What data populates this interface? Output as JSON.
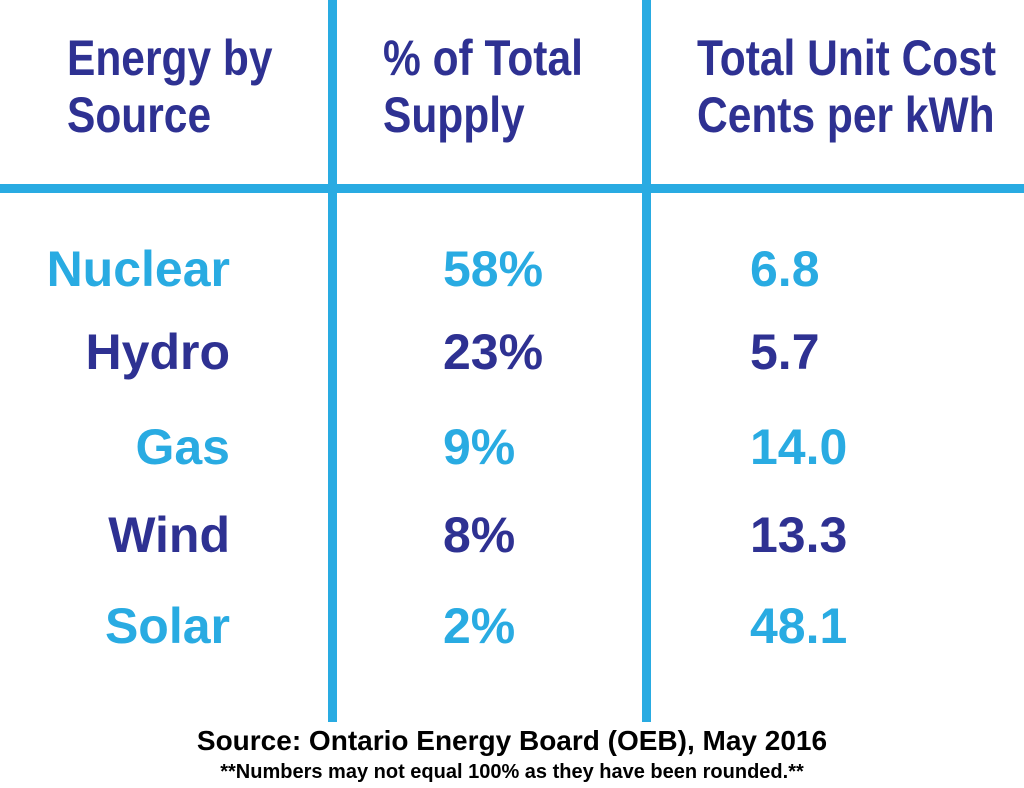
{
  "table": {
    "columns": [
      {
        "title_line1": "Energy by",
        "title_line2": "Source"
      },
      {
        "title_line1": "% of Total",
        "title_line2": "Supply"
      },
      {
        "title_line1": "Total Unit Cost",
        "title_line2": "Cents per kWh"
      }
    ],
    "rows": [
      {
        "source": "Nuclear",
        "supply_pct": "58%",
        "cost": "6.8"
      },
      {
        "source": "Hydro",
        "supply_pct": "23%",
        "cost": "5.7"
      },
      {
        "source": "Gas",
        "supply_pct": "9%",
        "cost": "14.0"
      },
      {
        "source": "Wind",
        "supply_pct": "8%",
        "cost": "13.3"
      },
      {
        "source": "Solar",
        "supply_pct": "2%",
        "cost": "48.1"
      }
    ]
  },
  "footer": {
    "source_text": "Source: Ontario Energy Board (OEB), May 2016",
    "note_text": "**Numbers may not equal 100% as they have been rounded.**"
  },
  "colors": {
    "light_blue": "#29ABE2",
    "dark_blue": "#2E3192",
    "footer_text": "#000000",
    "background": "#FFFFFF"
  },
  "chart_data": {
    "type": "table",
    "title": "",
    "columns": [
      "Energy by Source",
      "% of Total Supply",
      "Total Unit Cost Cents per kWh"
    ],
    "rows": [
      [
        "Nuclear",
        "58%",
        "6.8"
      ],
      [
        "Hydro",
        "23%",
        "5.7"
      ],
      [
        "Gas",
        "9%",
        "14.0"
      ],
      [
        "Wind",
        "8%",
        "13.3"
      ],
      [
        "Solar",
        "2%",
        "48.1"
      ]
    ],
    "categories": [
      "Nuclear",
      "Hydro",
      "Gas",
      "Wind",
      "Solar"
    ],
    "series": [
      {
        "name": "% of Total Supply",
        "values": [
          58,
          23,
          9,
          8,
          2
        ]
      },
      {
        "name": "Total Unit Cost Cents per kWh",
        "values": [
          6.8,
          5.7,
          14.0,
          13.3,
          48.1
        ]
      }
    ],
    "annotations": [
      "Source: Ontario Energy Board (OEB), May 2016",
      "**Numbers may not equal 100% as they have been rounded.**"
    ],
    "layout_hints": {
      "grid": "cyan column/header dividers",
      "row_color_alternation": [
        "light_blue",
        "dark_blue"
      ]
    }
  }
}
